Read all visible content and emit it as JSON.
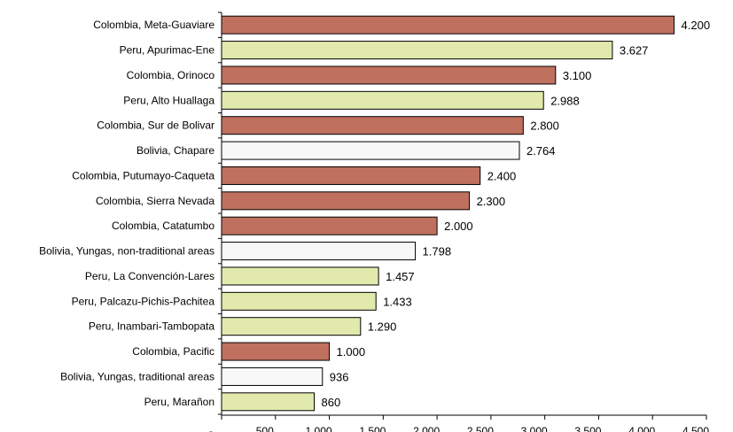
{
  "chart_data": {
    "type": "bar",
    "orientation": "horizontal",
    "title": "",
    "xlabel": "",
    "ylabel": "",
    "xlim": [
      0,
      4500
    ],
    "x_ticks": [
      0,
      500,
      1000,
      1500,
      2000,
      2500,
      3000,
      3500,
      4000,
      4500
    ],
    "x_tick_labels": [
      "-",
      "500",
      "1.000",
      "1.500",
      "2.000",
      "2.500",
      "3.000",
      "3.500",
      "4.000",
      "4.500"
    ],
    "grid": false,
    "legend": "none",
    "colors": {
      "colombia": "#c0705f",
      "peru": "#e1e9ad",
      "bolivia": "#f8f8f8",
      "outline": "#000000"
    },
    "categories": [
      "Colombia, Meta-Guaviare",
      "Peru, Apurimac-Ene",
      "Colombia, Orinoco",
      "Peru, Alto Huallaga",
      "Colombia, Sur de Bolivar",
      "Bolivia, Chapare",
      "Colombia, Putumayo-Caqueta",
      "Colombia, Sierra Nevada",
      "Colombia, Catatumbo",
      "Bolivia, Yungas, non-traditional areas",
      "Peru, La Convención-Lares",
      "Peru, Palcazu-Pichis-Pachitea",
      "Peru, Inambari-Tambopata",
      "Colombia, Pacific",
      "Bolivia, Yungas, traditional areas",
      "Peru, Marañon"
    ],
    "values": [
      4200,
      3627,
      3100,
      2988,
      2800,
      2764,
      2400,
      2300,
      2000,
      1798,
      1457,
      1433,
      1290,
      1000,
      936,
      860
    ],
    "value_labels": [
      "4.200",
      "3.627",
      "3.100",
      "2.988",
      "2.800",
      "2.764",
      "2.400",
      "2.300",
      "2.000",
      "1.798",
      "1.457",
      "1.433",
      "1.290",
      "1.000",
      "936",
      "860"
    ],
    "country_group": [
      "colombia",
      "peru",
      "colombia",
      "peru",
      "colombia",
      "bolivia",
      "colombia",
      "colombia",
      "colombia",
      "bolivia",
      "peru",
      "peru",
      "peru",
      "colombia",
      "bolivia",
      "peru"
    ]
  }
}
